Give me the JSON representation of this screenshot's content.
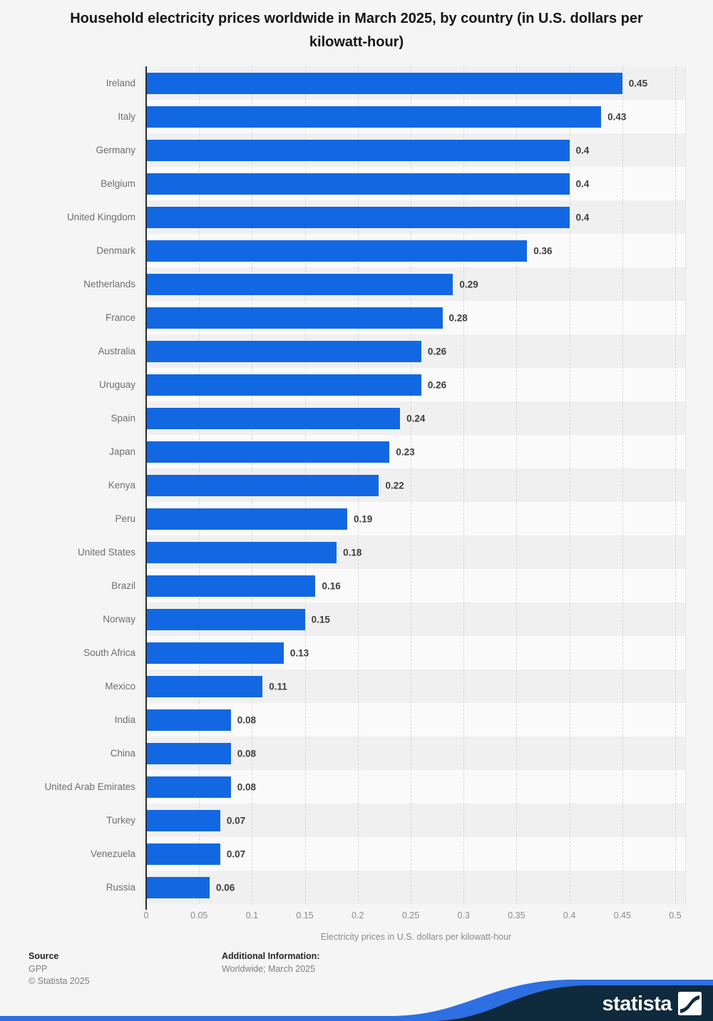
{
  "title": "Household electricity prices worldwide in March 2025, by country (in U.S. dollars per kilowatt-hour)",
  "chart_data": {
    "type": "bar",
    "orientation": "horizontal",
    "title": "Household electricity prices worldwide in March 2025, by country (in U.S. dollars per kilowatt-hour)",
    "categories": [
      "Ireland",
      "Italy",
      "Germany",
      "Belgium",
      "United Kingdom",
      "Denmark",
      "Netherlands",
      "France",
      "Australia",
      "Uruguay",
      "Spain",
      "Japan",
      "Kenya",
      "Peru",
      "United States",
      "Brazil",
      "Norway",
      "South Africa",
      "Mexico",
      "India",
      "China",
      "United Arab Emirates",
      "Turkey",
      "Venezuela",
      "Russia"
    ],
    "values": [
      0.45,
      0.43,
      0.4,
      0.4,
      0.4,
      0.36,
      0.29,
      0.28,
      0.26,
      0.26,
      0.24,
      0.23,
      0.22,
      0.19,
      0.18,
      0.16,
      0.15,
      0.13,
      0.11,
      0.08,
      0.08,
      0.08,
      0.07,
      0.07,
      0.06
    ],
    "value_labels": [
      "0.45",
      "0.43",
      "0.4",
      "0.4",
      "0.4",
      "0.36",
      "0.29",
      "0.28",
      "0.26",
      "0.26",
      "0.24",
      "0.23",
      "0.22",
      "0.19",
      "0.18",
      "0.16",
      "0.15",
      "0.13",
      "0.11",
      "0.08",
      "0.08",
      "0.08",
      "0.07",
      "0.07",
      "0.06"
    ],
    "xlabel": "Electricity prices in U.S. dollars per kilowatt-hour",
    "ylabel": "",
    "xlim": [
      0,
      0.5
    ],
    "xticks": [
      0,
      0.05,
      0.1,
      0.15,
      0.2,
      0.25,
      0.3,
      0.35,
      0.4,
      0.45,
      0.5
    ],
    "xtick_labels": [
      "0",
      "0.05",
      "0.1",
      "0.15",
      "0.2",
      "0.25",
      "0.3",
      "0.35",
      "0.4",
      "0.45",
      "0.5"
    ],
    "grid": "vertical-dashed",
    "legend": "none",
    "bar_color": "#1268e3"
  },
  "footer": {
    "source_label": "Source",
    "source_value": "GPP",
    "copyright": "© Statista 2025",
    "additional_label": "Additional Information:",
    "additional_value": "Worldwide; March 2025"
  },
  "branding": {
    "logo_text": "statista",
    "navy": "#0e2a3c",
    "stripe_blue": "#2e6fe2"
  }
}
